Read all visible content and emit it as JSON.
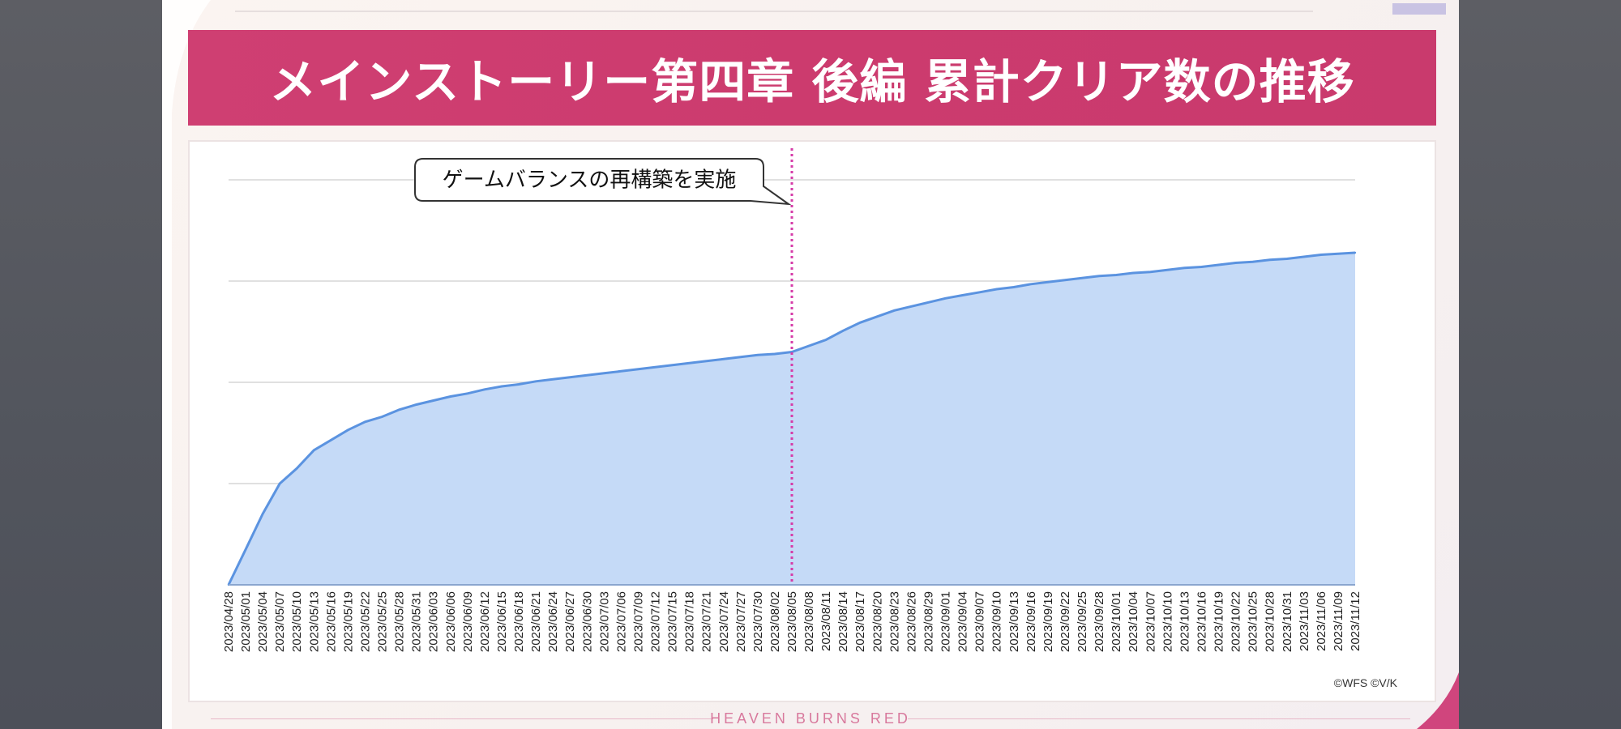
{
  "slide": {
    "title": "メインストーリー第四章 後編 累計クリア数の推移",
    "copyright": "©WFS ©V/K",
    "footer_logo": "HEAVEN BURNS RED",
    "colors": {
      "banner": "#cc3b6e",
      "area_fill": "#c5daf7",
      "area_line": "#5b93e0",
      "marker": "#d63ca8"
    }
  },
  "chart_data": {
    "type": "area",
    "title": "メインストーリー第四章 後編 累計クリア数の推移",
    "xlabel": "",
    "ylabel": "",
    "y_tick_labels_shown": false,
    "grid": true,
    "legend": "none",
    "x": [
      "2023/04/28",
      "2023/05/01",
      "2023/05/04",
      "2023/05/07",
      "2023/05/10",
      "2023/05/13",
      "2023/05/16",
      "2023/05/19",
      "2023/05/22",
      "2023/05/25",
      "2023/05/28",
      "2023/05/31",
      "2023/06/03",
      "2023/06/06",
      "2023/06/09",
      "2023/06/12",
      "2023/06/15",
      "2023/06/18",
      "2023/06/21",
      "2023/06/24",
      "2023/06/27",
      "2023/06/30",
      "2023/07/03",
      "2023/07/06",
      "2023/07/09",
      "2023/07/12",
      "2023/07/15",
      "2023/07/18",
      "2023/07/21",
      "2023/07/24",
      "2023/07/27",
      "2023/07/30",
      "2023/08/02",
      "2023/08/05",
      "2023/08/08",
      "2023/08/11",
      "2023/08/14",
      "2023/08/17",
      "2023/08/20",
      "2023/08/23",
      "2023/08/26",
      "2023/08/29",
      "2023/09/01",
      "2023/09/04",
      "2023/09/07",
      "2023/09/10",
      "2023/09/13",
      "2023/09/16",
      "2023/09/19",
      "2023/09/22",
      "2023/09/25",
      "2023/09/28",
      "2023/10/01",
      "2023/10/04",
      "2023/10/07",
      "2023/10/10",
      "2023/10/13",
      "2023/10/16",
      "2023/10/19",
      "2023/10/22",
      "2023/10/25",
      "2023/10/28",
      "2023/10/31",
      "2023/11/03",
      "2023/11/06",
      "2023/11/09",
      "2023/11/12"
    ],
    "series": [
      {
        "values": [
          0.0,
          0.35,
          0.7,
          1.0,
          1.15,
          1.33,
          1.43,
          1.53,
          1.61,
          1.66,
          1.73,
          1.78,
          1.82,
          1.86,
          1.89,
          1.93,
          1.96,
          1.98,
          2.01,
          2.03,
          2.05,
          2.07,
          2.09,
          2.11,
          2.13,
          2.15,
          2.17,
          2.19,
          2.21,
          2.23,
          2.25,
          2.27,
          2.28,
          2.3,
          2.36,
          2.42,
          2.51,
          2.59,
          2.65,
          2.71,
          2.75,
          2.79,
          2.83,
          2.86,
          2.89,
          2.92,
          2.94,
          2.97,
          2.99,
          3.01,
          3.03,
          3.05,
          3.06,
          3.08,
          3.09,
          3.11,
          3.13,
          3.14,
          3.16,
          3.18,
          3.19,
          3.21,
          3.22,
          3.24,
          3.26,
          3.27,
          3.28
        ]
      }
    ],
    "ylim": [
      0,
      4
    ],
    "annotations": [
      {
        "label": "ゲームバランスの再構築を実施",
        "x": "2023/08/05",
        "style": "dotted vertical line"
      }
    ]
  }
}
